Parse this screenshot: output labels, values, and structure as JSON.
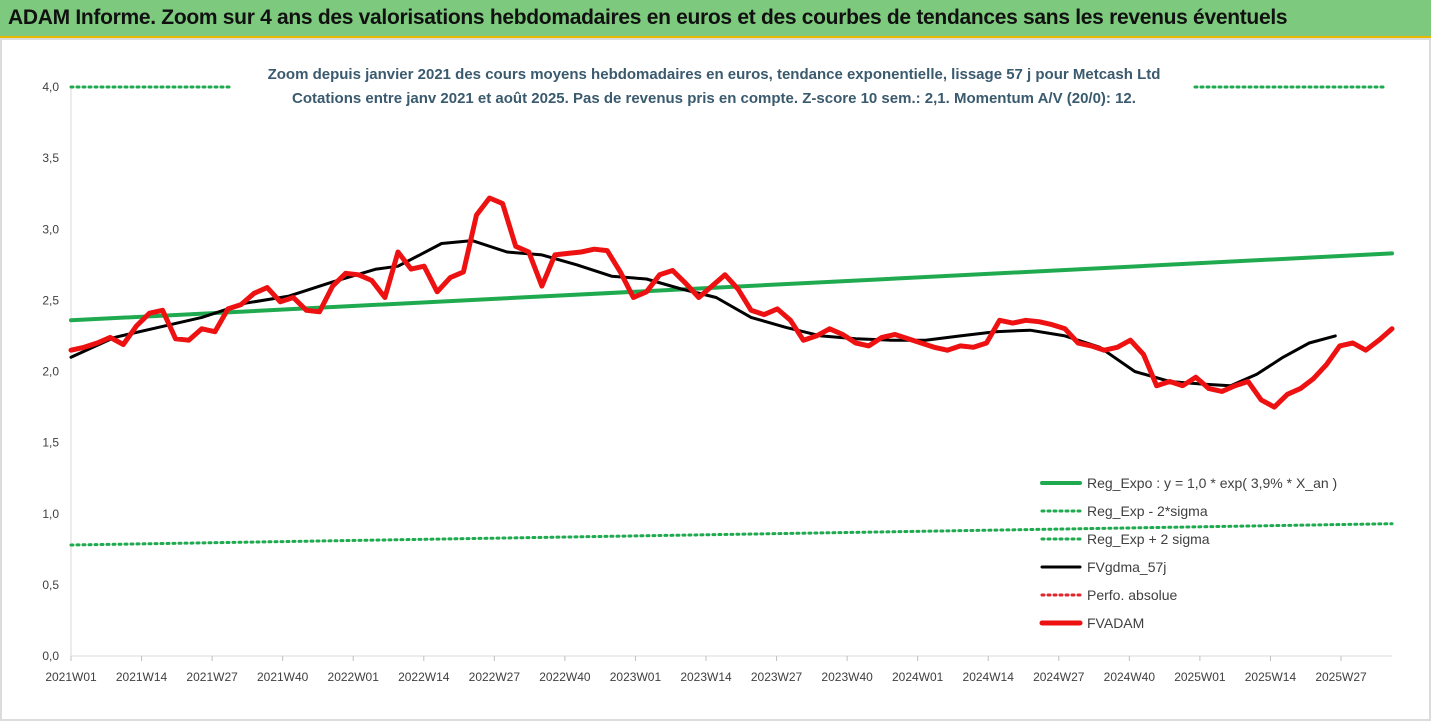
{
  "header": {
    "title": "ADAM Informe. Zoom sur 4 ans des valorisations hebdomadaires en euros et des courbes de tendances sans les revenus éventuels"
  },
  "chart_data": {
    "type": "line",
    "title_lines": [
      "Zoom depuis janvier 2021 des cours moyens hebdomadaires en euros, tendance exponentielle, lissage 57 j pour Metcash Ltd",
      "Cotations entre janv 2021 et août 2025. Pas de revenus pris en compte. Z-score 10 sem.: 2,1. Momentum A/V (20/0): 12."
    ],
    "ylim": [
      0,
      4
    ],
    "y_ticks": [
      "0,0",
      "0,5",
      "1,0",
      "1,5",
      "2,0",
      "2,5",
      "3,0",
      "3,5",
      "4,0"
    ],
    "x_ticks": [
      "2021W01",
      "2021W14",
      "2021W27",
      "2021W40",
      "2022W01",
      "2022W14",
      "2022W27",
      "2022W40",
      "2023W01",
      "2023W14",
      "2023W27",
      "2023W40",
      "2024W01",
      "2024W14",
      "2024W27",
      "2024W40",
      "2025W01",
      "2025W14",
      "2025W27"
    ],
    "n_weeks": 243,
    "grid": false,
    "legend_position": "bottom-right",
    "series": [
      {
        "name": "Reg_Expo : y = 1,0 * exp( 3,9% *  X_an )",
        "color": "#1faa50",
        "style": "solid",
        "width": 4,
        "points": [
          [
            0,
            2.36
          ],
          [
            242,
            2.83
          ]
        ]
      },
      {
        "name": "Reg_Exp - 2*sigma",
        "color": "#1faa50",
        "style": "dotted",
        "width": 3,
        "points": [
          [
            0,
            0.78
          ],
          [
            242,
            0.93
          ]
        ]
      },
      {
        "name": "Reg_Exp + 2 sigma",
        "color": "#1faa50",
        "style": "dotted",
        "width": 3,
        "points": [
          [
            0,
            4.0
          ],
          [
            242,
            4.0
          ]
        ]
      },
      {
        "name": "FVgdma_57j",
        "color": "#000000",
        "style": "solid",
        "width": 3,
        "points": [
          [
            0,
            2.1
          ],
          [
            10,
            2.24
          ],
          [
            20,
            2.31
          ],
          [
            30,
            2.38
          ],
          [
            40,
            2.48
          ],
          [
            50,
            2.53
          ],
          [
            60,
            2.63
          ],
          [
            70,
            2.72
          ],
          [
            75,
            2.74
          ],
          [
            80,
            2.82
          ],
          [
            85,
            2.9
          ],
          [
            92,
            2.92
          ],
          [
            100,
            2.84
          ],
          [
            108,
            2.82
          ],
          [
            116,
            2.75
          ],
          [
            124,
            2.67
          ],
          [
            132,
            2.65
          ],
          [
            140,
            2.58
          ],
          [
            148,
            2.52
          ],
          [
            156,
            2.38
          ],
          [
            164,
            2.31
          ],
          [
            172,
            2.25
          ],
          [
            180,
            2.23
          ],
          [
            188,
            2.22
          ],
          [
            196,
            2.22
          ],
          [
            204,
            2.25
          ],
          [
            212,
            2.28
          ],
          [
            220,
            2.29
          ],
          [
            228,
            2.25
          ],
          [
            236,
            2.17
          ],
          [
            244,
            2.0
          ],
          [
            252,
            1.93
          ],
          [
            260,
            1.91
          ],
          [
            266,
            1.9
          ],
          [
            272,
            1.98
          ],
          [
            278,
            2.1
          ],
          [
            284,
            2.2
          ],
          [
            290,
            2.25
          ]
        ]
      },
      {
        "name": "Perfo. absolue",
        "color": "#e0262b",
        "style": "dotted",
        "width": 3,
        "points": []
      },
      {
        "name": "FVADAM",
        "color": "#ee1111",
        "style": "solid",
        "width": 5,
        "points": [
          [
            0,
            2.15
          ],
          [
            3,
            2.17
          ],
          [
            6,
            2.2
          ],
          [
            9,
            2.24
          ],
          [
            12,
            2.19
          ],
          [
            15,
            2.32
          ],
          [
            18,
            2.41
          ],
          [
            21,
            2.43
          ],
          [
            24,
            2.23
          ],
          [
            27,
            2.22
          ],
          [
            30,
            2.3
          ],
          [
            33,
            2.28
          ],
          [
            36,
            2.44
          ],
          [
            39,
            2.47
          ],
          [
            42,
            2.55
          ],
          [
            45,
            2.59
          ],
          [
            48,
            2.49
          ],
          [
            51,
            2.52
          ],
          [
            54,
            2.43
          ],
          [
            57,
            2.42
          ],
          [
            60,
            2.6
          ],
          [
            63,
            2.69
          ],
          [
            66,
            2.68
          ],
          [
            69,
            2.64
          ],
          [
            72,
            2.52
          ],
          [
            75,
            2.84
          ],
          [
            78,
            2.72
          ],
          [
            81,
            2.74
          ],
          [
            84,
            2.56
          ],
          [
            87,
            2.66
          ],
          [
            90,
            2.7
          ],
          [
            93,
            3.1
          ],
          [
            96,
            3.22
          ],
          [
            99,
            3.18
          ],
          [
            102,
            2.88
          ],
          [
            105,
            2.84
          ],
          [
            108,
            2.6
          ],
          [
            111,
            2.82
          ],
          [
            114,
            2.83
          ],
          [
            117,
            2.84
          ],
          [
            120,
            2.86
          ],
          [
            123,
            2.85
          ],
          [
            126,
            2.7
          ],
          [
            129,
            2.52
          ],
          [
            132,
            2.56
          ],
          [
            135,
            2.68
          ],
          [
            138,
            2.71
          ],
          [
            141,
            2.62
          ],
          [
            144,
            2.52
          ],
          [
            147,
            2.6
          ],
          [
            150,
            2.68
          ],
          [
            153,
            2.58
          ],
          [
            156,
            2.43
          ],
          [
            159,
            2.4
          ],
          [
            162,
            2.44
          ],
          [
            165,
            2.36
          ],
          [
            168,
            2.22
          ],
          [
            171,
            2.25
          ],
          [
            174,
            2.3
          ],
          [
            177,
            2.26
          ],
          [
            180,
            2.2
          ],
          [
            183,
            2.18
          ],
          [
            186,
            2.24
          ],
          [
            189,
            2.26
          ],
          [
            192,
            2.23
          ],
          [
            195,
            2.2
          ],
          [
            198,
            2.17
          ],
          [
            201,
            2.15
          ],
          [
            204,
            2.18
          ],
          [
            207,
            2.17
          ],
          [
            210,
            2.2
          ],
          [
            213,
            2.36
          ],
          [
            216,
            2.34
          ],
          [
            219,
            2.36
          ],
          [
            222,
            2.35
          ],
          [
            225,
            2.33
          ],
          [
            228,
            2.3
          ],
          [
            231,
            2.2
          ],
          [
            234,
            2.18
          ],
          [
            237,
            2.15
          ],
          [
            240,
            2.17
          ],
          [
            243,
            2.22
          ],
          [
            246,
            2.12
          ],
          [
            249,
            1.9
          ],
          [
            252,
            1.93
          ],
          [
            255,
            1.9
          ],
          [
            258,
            1.96
          ],
          [
            261,
            1.88
          ],
          [
            264,
            1.86
          ],
          [
            267,
            1.9
          ],
          [
            270,
            1.93
          ],
          [
            273,
            1.8
          ],
          [
            276,
            1.75
          ],
          [
            279,
            1.84
          ],
          [
            282,
            1.88
          ],
          [
            285,
            1.95
          ],
          [
            288,
            2.05
          ],
          [
            291,
            2.18
          ],
          [
            294,
            2.2
          ],
          [
            297,
            2.15
          ],
          [
            300,
            2.22
          ],
          [
            303,
            2.3
          ]
        ]
      }
    ]
  }
}
